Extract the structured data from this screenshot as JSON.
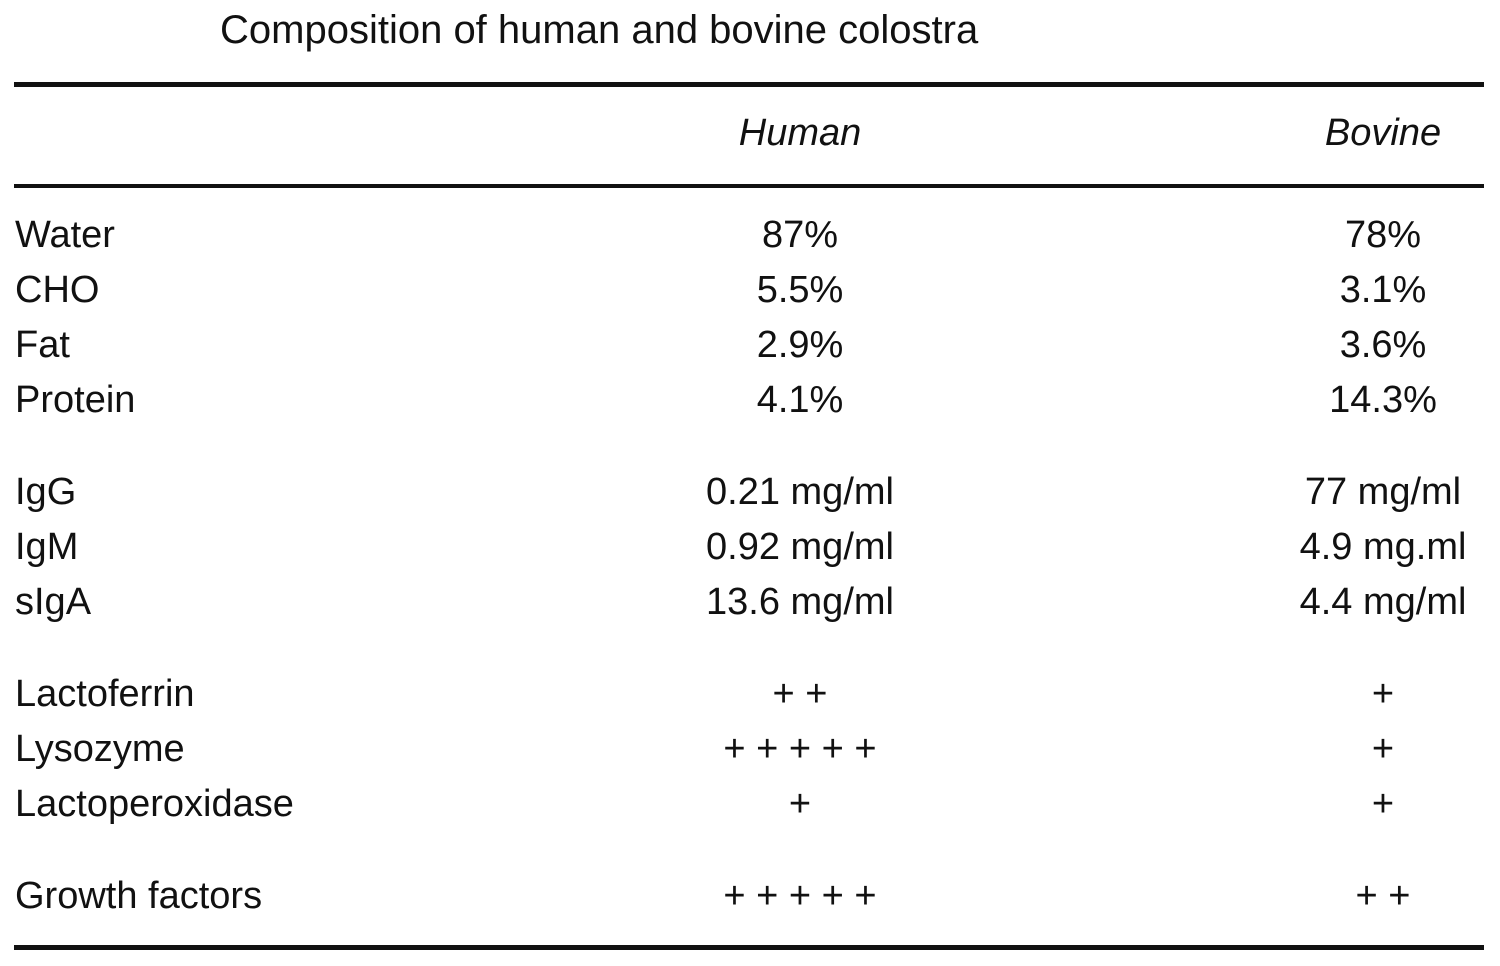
{
  "table": {
    "title": "Composition of human and bovine colostra",
    "columns": [
      "Human",
      "Bovine"
    ],
    "groups": [
      [
        [
          "Water",
          "87%",
          "78%"
        ],
        [
          "CHO",
          "5.5%",
          "3.1%"
        ],
        [
          "Fat",
          "2.9%",
          "3.6%"
        ],
        [
          "Protein",
          "4.1%",
          "14.3%"
        ]
      ],
      [
        [
          "IgG",
          "0.21 mg/ml",
          "77 mg/ml"
        ],
        [
          "IgM",
          "0.92 mg/ml",
          "4.9 mg.ml"
        ],
        [
          "sIgA",
          "13.6 mg/ml",
          "4.4 mg/ml"
        ]
      ],
      [
        [
          "Lactoferrin",
          "+ +",
          "+"
        ],
        [
          "Lysozyme",
          "+ + + + +",
          "+"
        ],
        [
          "Lactoperoxidase",
          "+",
          "+"
        ]
      ],
      [
        [
          "Growth factors",
          "+ + + + +",
          "+ +"
        ]
      ]
    ]
  }
}
